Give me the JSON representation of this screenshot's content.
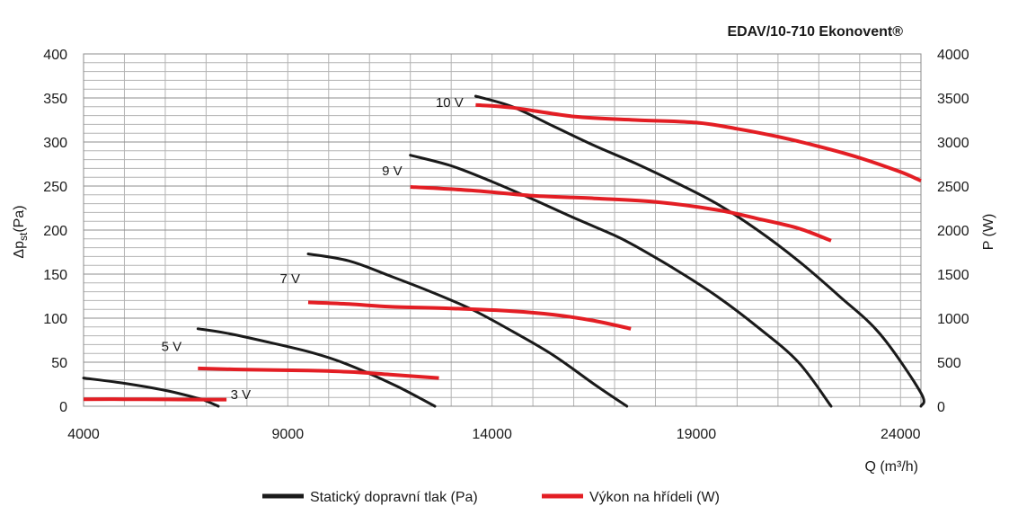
{
  "chart_data": {
    "type": "line",
    "title": "EDAV/10-710 Ekonovent®",
    "xlabel": "Q (m³/h)",
    "ylabel": "Δpst (Pa)",
    "ylabel_parts": {
      "main": "Δp",
      "sub": "st",
      "unit": "(Pa)"
    },
    "y2label": "P (W)",
    "xlim": [
      4000,
      24500
    ],
    "ylim": [
      0,
      400
    ],
    "y2lim": [
      0,
      4000
    ],
    "x_ticks": [
      4000,
      9000,
      14000,
      19000,
      24000
    ],
    "y_ticks": [
      0,
      50,
      100,
      150,
      200,
      250,
      300,
      350,
      400
    ],
    "y2_ticks": [
      0,
      500,
      1000,
      1500,
      2000,
      2500,
      3000,
      3500,
      4000
    ],
    "grid": true,
    "legend_position": "bottom",
    "legend": [
      {
        "label": "Statický dopravní tlak (Pa)",
        "color": "#1a1a1a"
      },
      {
        "label": "Výkon na hřídeli (W)",
        "color": "#e31e24"
      }
    ],
    "pressure_series": [
      {
        "speed": "3 V",
        "points": [
          [
            4000,
            32
          ],
          [
            5000,
            26
          ],
          [
            6000,
            18
          ],
          [
            6800,
            9
          ],
          [
            7000,
            6
          ],
          [
            7300,
            0
          ]
        ]
      },
      {
        "speed": "5 V",
        "points": [
          [
            6800,
            88
          ],
          [
            7500,
            83
          ],
          [
            8500,
            73
          ],
          [
            9500,
            62
          ],
          [
            10200,
            52
          ],
          [
            11000,
            37
          ],
          [
            11700,
            22
          ],
          [
            12200,
            10
          ],
          [
            12600,
            0
          ]
        ]
      },
      {
        "speed": "7 V",
        "points": [
          [
            9500,
            173
          ],
          [
            10500,
            165
          ],
          [
            11500,
            148
          ],
          [
            12500,
            130
          ],
          [
            13500,
            110
          ],
          [
            14500,
            85
          ],
          [
            15500,
            58
          ],
          [
            16500,
            25
          ],
          [
            17300,
            0
          ]
        ]
      },
      {
        "speed": "9 V",
        "points": [
          [
            12000,
            285
          ],
          [
            13000,
            273
          ],
          [
            14000,
            255
          ],
          [
            15000,
            235
          ],
          [
            16000,
            214
          ],
          [
            17000,
            194
          ],
          [
            17500,
            182
          ],
          [
            18500,
            155
          ],
          [
            19500,
            125
          ],
          [
            20500,
            90
          ],
          [
            21500,
            50
          ],
          [
            22300,
            0
          ]
        ]
      },
      {
        "speed": "10 V",
        "points": [
          [
            13600,
            352
          ],
          [
            14500,
            340
          ],
          [
            15500,
            318
          ],
          [
            16500,
            296
          ],
          [
            17500,
            276
          ],
          [
            18500,
            254
          ],
          [
            19500,
            230
          ],
          [
            20500,
            200
          ],
          [
            21500,
            165
          ],
          [
            22500,
            125
          ],
          [
            23500,
            82
          ],
          [
            24500,
            15
          ],
          [
            24800,
            0
          ]
        ]
      }
    ],
    "power_series": [
      {
        "speed": "3 V",
        "points": [
          [
            4000,
            80
          ],
          [
            5000,
            80
          ],
          [
            6000,
            78
          ],
          [
            7000,
            75
          ],
          [
            7500,
            75
          ]
        ]
      },
      {
        "speed": "5 V",
        "points": [
          [
            6800,
            430
          ],
          [
            8000,
            415
          ],
          [
            9500,
            405
          ],
          [
            10500,
            390
          ],
          [
            11500,
            360
          ],
          [
            12700,
            320
          ]
        ]
      },
      {
        "speed": "7 V",
        "points": [
          [
            9500,
            1180
          ],
          [
            10500,
            1160
          ],
          [
            11500,
            1130
          ],
          [
            13000,
            1110
          ],
          [
            14500,
            1080
          ],
          [
            15500,
            1040
          ],
          [
            16500,
            970
          ],
          [
            17400,
            880
          ]
        ]
      },
      {
        "speed": "9 V",
        "points": [
          [
            12000,
            2490
          ],
          [
            13500,
            2450
          ],
          [
            15000,
            2390
          ],
          [
            16500,
            2360
          ],
          [
            18000,
            2320
          ],
          [
            19500,
            2230
          ],
          [
            20500,
            2130
          ],
          [
            21500,
            2020
          ],
          [
            22300,
            1880
          ]
        ]
      },
      {
        "speed": "10 V",
        "points": [
          [
            13600,
            3420
          ],
          [
            14500,
            3390
          ],
          [
            16000,
            3290
          ],
          [
            17500,
            3250
          ],
          [
            19000,
            3220
          ],
          [
            20000,
            3150
          ],
          [
            21000,
            3060
          ],
          [
            22000,
            2950
          ],
          [
            23000,
            2820
          ],
          [
            24000,
            2660
          ],
          [
            24800,
            2560
          ]
        ]
      }
    ],
    "speed_labels": [
      {
        "text": "3 V",
        "x": 7600,
        "y": 8,
        "anchor": "start"
      },
      {
        "text": "5 V",
        "x": 6400,
        "y": 63,
        "anchor": "end"
      },
      {
        "text": "7 V",
        "x": 9300,
        "y": 140,
        "anchor": "end"
      },
      {
        "text": "9 V",
        "x": 11800,
        "y": 262,
        "anchor": "end"
      },
      {
        "text": "10 V",
        "x": 13300,
        "y": 340,
        "anchor": "end"
      }
    ],
    "colors": {
      "pressure": "#1a1a1a",
      "power": "#e31e24",
      "grid": "#b3b3b3"
    }
  }
}
